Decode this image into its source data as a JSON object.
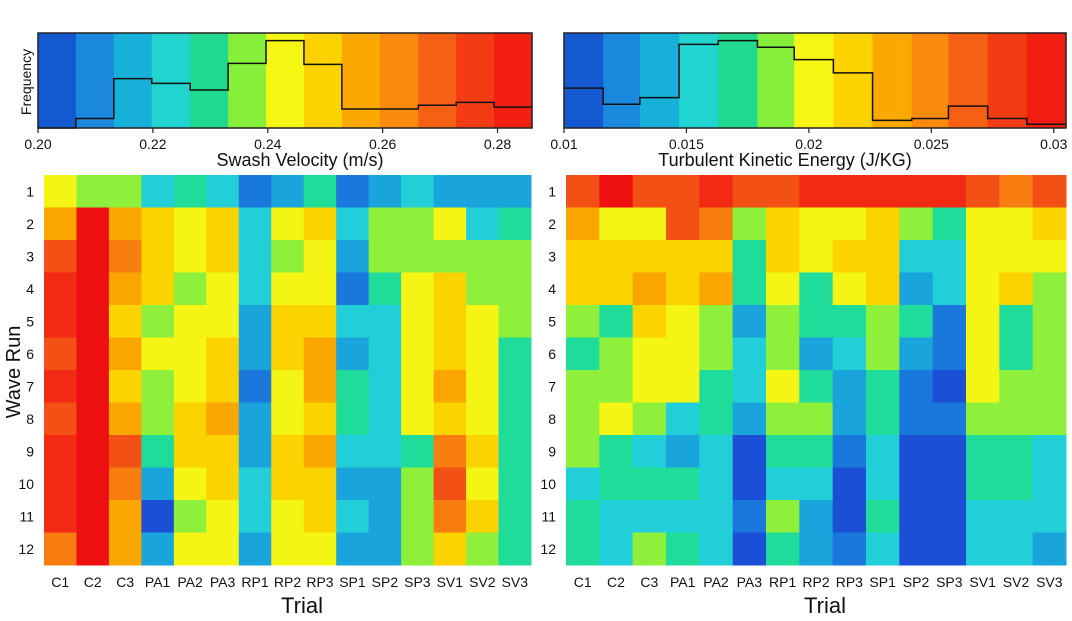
{
  "chart_data": [
    {
      "type": "histogram",
      "id": "velocity-histogram",
      "title": "Swash Velocity (m/s)",
      "ylabel": "Frequency",
      "xlim": [
        0.2,
        0.286
      ],
      "x_ticks": [
        "0.20",
        "0.22",
        "0.24",
        "0.26",
        "0.28"
      ],
      "x_tick_values": [
        0.2,
        0.22,
        0.24,
        0.26,
        0.28
      ],
      "bin_edges": [
        0.2,
        0.2066,
        0.2132,
        0.2198,
        0.2265,
        0.2331,
        0.2397,
        0.2463,
        0.2529,
        0.2595,
        0.2662,
        0.2728,
        0.2794,
        0.286
      ],
      "bin_colors": [
        "#1559d2",
        "#1a88dc",
        "#17b0d8",
        "#20d4d0",
        "#20d890",
        "#86ef3a",
        "#f6f614",
        "#fcd200",
        "#fba800",
        "#f98a0c",
        "#f66014",
        "#f33c14",
        "#f31e12"
      ],
      "frequencies": [
        0.0,
        0.1,
        0.52,
        0.47,
        0.4,
        0.68,
        0.92,
        0.67,
        0.2,
        0.2,
        0.24,
        0.27,
        0.22
      ],
      "ylim": [
        0,
        1
      ]
    },
    {
      "type": "histogram",
      "id": "tke-histogram",
      "title": "Turbulent Kinetic Energy (J/KG)",
      "ylabel": "",
      "xlim": [
        0.01,
        0.0305
      ],
      "x_ticks": [
        "0.01",
        "0.015",
        "0.02",
        "0.025",
        "0.03"
      ],
      "x_tick_values": [
        0.01,
        0.015,
        0.02,
        0.025,
        0.03
      ],
      "bin_edges": [
        0.01,
        0.0116,
        0.0131,
        0.0147,
        0.0163,
        0.0179,
        0.0194,
        0.021,
        0.0226,
        0.0242,
        0.0257,
        0.0273,
        0.0289,
        0.0305
      ],
      "bin_colors": [
        "#1559d2",
        "#1a88dc",
        "#17b0d8",
        "#20d4d0",
        "#20d890",
        "#86ef3a",
        "#f6f614",
        "#fcd200",
        "#fba800",
        "#f98a0c",
        "#f66014",
        "#f33c14",
        "#f31e12"
      ],
      "frequencies": [
        0.42,
        0.25,
        0.32,
        0.88,
        0.92,
        0.85,
        0.72,
        0.58,
        0.08,
        0.1,
        0.23,
        0.1,
        0.04
      ],
      "ylim": [
        0,
        1
      ]
    },
    {
      "type": "heatmap",
      "id": "velocity-heatmap",
      "xlabel": "Trial",
      "ylabel": "Wave Run",
      "x_categories": [
        "C1",
        "C2",
        "C3",
        "PA1",
        "PA2",
        "PA3",
        "RP1",
        "RP2",
        "RP3",
        "SP1",
        "SP2",
        "SP3",
        "SV1",
        "SV2",
        "SV3"
      ],
      "y_categories": [
        "1",
        "2",
        "3",
        "4",
        "5",
        "6",
        "7",
        "8",
        "9",
        "10",
        "11",
        "12"
      ],
      "palette": [
        "#1a4fd6",
        "#1a78dc",
        "#1aa4dc",
        "#22cfd8",
        "#20dc9a",
        "#8ef03a",
        "#f4f514",
        "#fbd300",
        "#faa500",
        "#f77d10",
        "#f35015",
        "#f22a14",
        "#ee1010"
      ],
      "grid": [
        [
          6,
          5,
          5,
          3,
          4,
          3,
          1,
          2,
          4,
          1,
          2,
          3,
          2,
          2,
          2
        ],
        [
          8,
          12,
          8,
          7,
          6,
          7,
          3,
          6,
          7,
          3,
          5,
          5,
          6,
          3,
          4
        ],
        [
          10,
          12,
          9,
          7,
          6,
          7,
          3,
          5,
          6,
          2,
          5,
          5,
          5,
          5,
          5
        ],
        [
          11,
          12,
          8,
          7,
          5,
          6,
          3,
          6,
          6,
          1,
          4,
          6,
          7,
          5,
          5
        ],
        [
          11,
          12,
          7,
          5,
          6,
          6,
          2,
          7,
          7,
          3,
          3,
          6,
          7,
          6,
          5
        ],
        [
          10,
          12,
          8,
          6,
          6,
          7,
          2,
          7,
          8,
          2,
          3,
          6,
          7,
          6,
          4
        ],
        [
          11,
          12,
          7,
          5,
          6,
          7,
          1,
          6,
          8,
          4,
          3,
          6,
          8,
          6,
          4
        ],
        [
          10,
          12,
          8,
          5,
          7,
          8,
          2,
          6,
          7,
          4,
          3,
          6,
          7,
          6,
          4
        ],
        [
          11,
          12,
          10,
          4,
          7,
          7,
          2,
          7,
          8,
          3,
          3,
          4,
          9,
          7,
          4
        ],
        [
          11,
          12,
          9,
          2,
          6,
          7,
          3,
          7,
          7,
          2,
          2,
          5,
          10,
          6,
          4
        ],
        [
          11,
          12,
          8,
          0,
          5,
          6,
          3,
          6,
          7,
          3,
          2,
          5,
          9,
          7,
          4
        ],
        [
          9,
          12,
          8,
          2,
          6,
          6,
          2,
          6,
          6,
          2,
          2,
          5,
          7,
          5,
          4
        ]
      ]
    },
    {
      "type": "heatmap",
      "id": "tke-heatmap",
      "xlabel": "Trial",
      "ylabel": "",
      "x_categories": [
        "C1",
        "C2",
        "C3",
        "PA1",
        "PA2",
        "PA3",
        "RP1",
        "RP2",
        "RP3",
        "SP1",
        "SP2",
        "SP3",
        "SV1",
        "SV2",
        "SV3"
      ],
      "y_categories": [
        "1",
        "2",
        "3",
        "4",
        "5",
        "6",
        "7",
        "8",
        "9",
        "10",
        "11",
        "12"
      ],
      "palette": [
        "#1a4fd6",
        "#1a78dc",
        "#1aa4dc",
        "#22cfd8",
        "#20dc9a",
        "#8ef03a",
        "#f4f514",
        "#fbd300",
        "#faa500",
        "#f77d10",
        "#f35015",
        "#f22a14",
        "#ee1010"
      ],
      "grid": [
        [
          10,
          12,
          10,
          10,
          11,
          10,
          10,
          11,
          11,
          11,
          11,
          11,
          10,
          9,
          10
        ],
        [
          8,
          6,
          6,
          10,
          9,
          5,
          7,
          6,
          6,
          7,
          5,
          4,
          6,
          6,
          7
        ],
        [
          7,
          7,
          7,
          7,
          7,
          4,
          7,
          6,
          7,
          7,
          3,
          3,
          6,
          6,
          6
        ],
        [
          7,
          7,
          8,
          7,
          8,
          4,
          6,
          4,
          6,
          7,
          2,
          3,
          6,
          7,
          5
        ],
        [
          5,
          4,
          7,
          6,
          5,
          2,
          5,
          4,
          4,
          5,
          4,
          1,
          6,
          4,
          5
        ],
        [
          4,
          5,
          6,
          6,
          5,
          3,
          5,
          2,
          3,
          5,
          2,
          1,
          6,
          4,
          5
        ],
        [
          5,
          5,
          6,
          6,
          4,
          3,
          6,
          4,
          2,
          4,
          1,
          0,
          6,
          5,
          5
        ],
        [
          5,
          6,
          5,
          3,
          4,
          2,
          5,
          5,
          2,
          4,
          1,
          1,
          5,
          5,
          5
        ],
        [
          5,
          4,
          3,
          2,
          3,
          0,
          4,
          4,
          1,
          3,
          0,
          0,
          4,
          4,
          3
        ],
        [
          3,
          4,
          4,
          4,
          3,
          0,
          3,
          3,
          0,
          3,
          0,
          0,
          4,
          4,
          3
        ],
        [
          4,
          3,
          3,
          3,
          3,
          1,
          5,
          2,
          0,
          4,
          0,
          0,
          3,
          3,
          3
        ],
        [
          4,
          3,
          5,
          4,
          3,
          0,
          4,
          2,
          1,
          3,
          0,
          0,
          3,
          3,
          2
        ]
      ]
    }
  ]
}
